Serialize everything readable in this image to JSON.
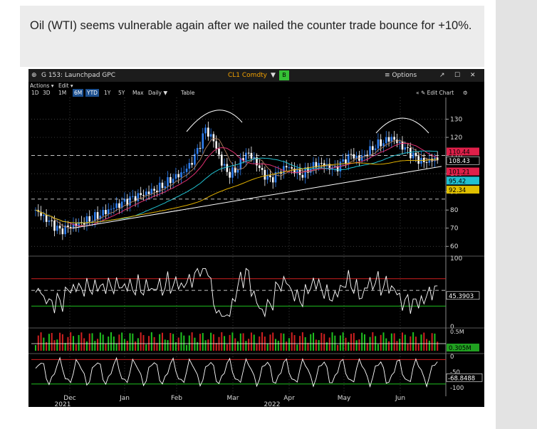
{
  "caption": {
    "text": "Oil (WTI) seems vulnerable again after we nailed the counter trade bounce for +10%."
  },
  "terminal": {
    "title": "G 153: Launchpad GPC",
    "ticker": "CL1 Comdty",
    "ticker_caret": "▼",
    "ticker_button": "B",
    "options_label": "≡ Options",
    "window_icons": [
      "↗",
      "☐",
      "✕"
    ],
    "menu": [
      "Actions ▾",
      "Edit ▾"
    ],
    "ranges": [
      "1D",
      "3D",
      "1M",
      "6M",
      "YTD",
      "1Y",
      "5Y",
      "Max",
      "Daily ▼",
      "Table"
    ],
    "active_ranges": [
      "6M",
      "YTD"
    ],
    "edit_chart": "« ✎ Edit Chart"
  },
  "colors": {
    "background": "#000000",
    "up_candle": "#2f7ff0",
    "down_candle": "#ffffff",
    "ma_short": "#e03070",
    "ma_long": "#e0b000",
    "ma_mid": "#20c0d0",
    "trendline": "#ffffff",
    "rsi_line": "#ffffff",
    "overbought": "#d02020",
    "oversold": "#20c020",
    "volume_up": "#20c020",
    "volume_down": "#d02020"
  },
  "chart_data": [
    {
      "type": "candlestick",
      "panel": "price",
      "x_ticks": [
        "Dec",
        "Jan",
        "Feb",
        "Mar",
        "Apr",
        "May",
        "Jun"
      ],
      "x_sub_labels": [
        "2021",
        "2022"
      ],
      "y_ticks": [
        60,
        70,
        80,
        90,
        100,
        110,
        120,
        130
      ],
      "ylim": [
        55,
        140
      ],
      "grid": true,
      "last_value_labels": [
        {
          "value": "108.43",
          "color": "#ffffff"
        },
        {
          "value": "110.44",
          "color": "#e0204a"
        },
        {
          "value": "101.21",
          "color": "#e0204a"
        },
        {
          "value": "95.42",
          "color": "#20c0d0"
        },
        {
          "value": "92.34",
          "color": "#e0c000"
        }
      ],
      "ohlc_close_approx": [
        80,
        76,
        72,
        68,
        70,
        72,
        74,
        76,
        78,
        80,
        82,
        84,
        86,
        88,
        90,
        92,
        95,
        98,
        100,
        104,
        112,
        124,
        118,
        106,
        100,
        104,
        112,
        108,
        100,
        96,
        100,
        104,
        102,
        100,
        104,
        106,
        104,
        102,
        106,
        110,
        108,
        112,
        116,
        118,
        120,
        116,
        112,
        108,
        106,
        108
      ],
      "annotations": [
        "head-and-shoulders arcs over March and June tops",
        "rising trendline from December lows",
        "dashed resistance near 110",
        "dashed support near 86"
      ]
    },
    {
      "type": "line",
      "panel": "rsi",
      "y_ticks": [
        0,
        100
      ],
      "last_value": "45.3903",
      "overbought": 70,
      "oversold": 30
    },
    {
      "type": "bar",
      "panel": "volume",
      "last_value": "0.305M",
      "y_tick_label": "0.5M"
    },
    {
      "type": "line",
      "panel": "williams_r",
      "y_ticks": [
        0,
        -50,
        -100
      ],
      "last_value": "-68.8488"
    }
  ]
}
